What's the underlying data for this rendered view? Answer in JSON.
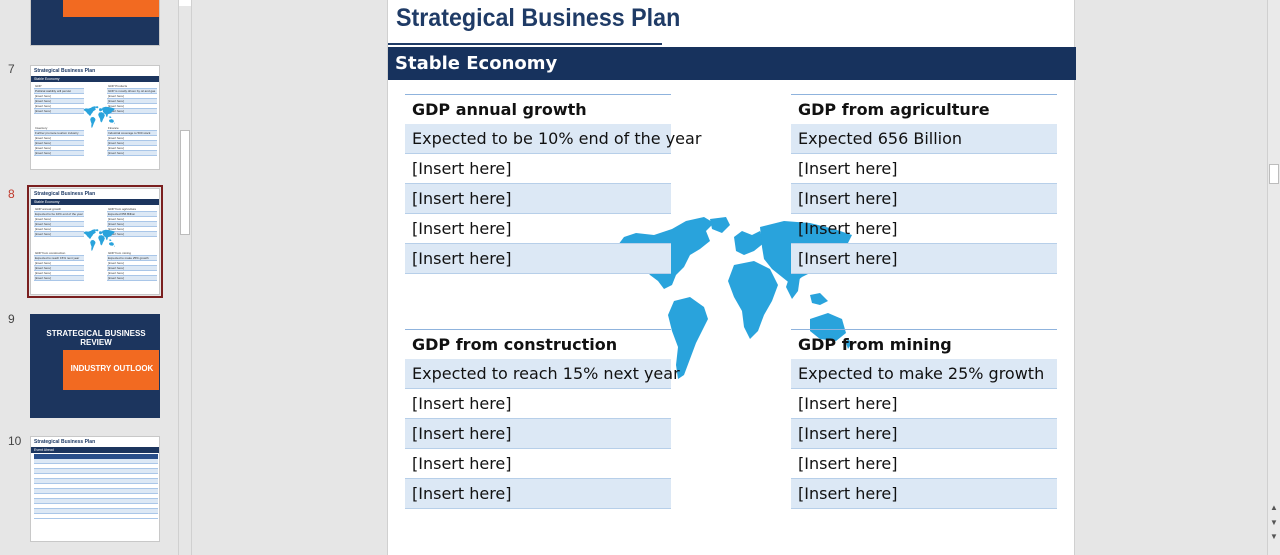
{
  "thumbnails": [
    {
      "num": "7",
      "title": "Strategical Business Plan",
      "band": "Stable Economy",
      "left_head": "GDP",
      "left_first": "Political stability will persist",
      "right_head": "GDP Products",
      "right_first": "GDP is mostly driven by oil and gas",
      "bl_head": "Inventory",
      "bl_first": "Further promote tourism industry",
      "br_head": "Finance",
      "br_first": "Industrial coverage to 500 stock",
      "row": "[insert here]"
    },
    {
      "num": "8",
      "title": "Strategical Business Plan",
      "band": "Stable Economy",
      "left_head": "GDP annual growth",
      "left_first": "Expected to be 10% end of the year",
      "right_head": "GDP from agriculture",
      "right_first": "Expected 656 Billion",
      "bl_head": "GDP from construction",
      "bl_first": "Expected to reach 15% next year",
      "br_head": "GDP from mining",
      "br_first": "Expected to make 25% growth",
      "row": "[insert here]"
    },
    {
      "num": "9",
      "line1": "STRATEGICAL BUSINESS REVIEW",
      "line2": "INDUSTRY OUTLOOK"
    },
    {
      "num": "10",
      "title": "Strategical Business Plan",
      "band": "Event Ahead"
    }
  ],
  "slide": {
    "title": "Strategical Business Plan",
    "band": "Stable Economy",
    "blocks": [
      {
        "head": "GDP annual growth",
        "rows": [
          "Expected to be 10% end of the year",
          "[Insert here]",
          "[Insert here]",
          "[Insert here]",
          "[Insert here]"
        ]
      },
      {
        "head": "GDP from agriculture",
        "rows": [
          "Expected 656 Billion",
          "[Insert here]",
          "[Insert here]",
          "[Insert here]",
          "[Insert here]"
        ]
      },
      {
        "head": "GDP from construction",
        "rows": [
          "Expected to reach 15% next year",
          "[Insert here]",
          "[Insert here]",
          "[Insert here]",
          "[Insert here]"
        ]
      },
      {
        "head": "GDP from mining",
        "rows": [
          "Expected to make 25% growth",
          "[Insert here]",
          "[Insert here]",
          "[Insert here]",
          "[Insert here]"
        ]
      }
    ]
  },
  "colors": {
    "accent_navy": "#17325d",
    "title_blue": "#1f3b66",
    "row_alt": "#dce8f5",
    "map_blue": "#29a3dc",
    "orange": "#f26a21",
    "selected_border": "#7a1f1f"
  },
  "icons": {
    "map": "world-map-icon",
    "scroll_up": "chevron-up-icon",
    "scroll_down": "chevron-down-icon"
  }
}
